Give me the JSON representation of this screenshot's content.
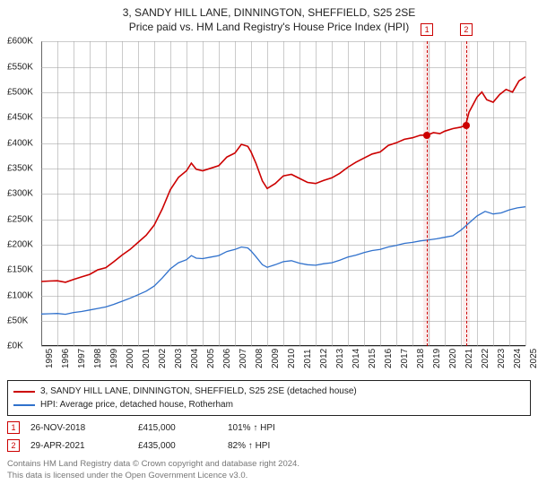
{
  "title": {
    "line1": "3, SANDY HILL LANE, DINNINGTON, SHEFFIELD, S25 2SE",
    "line2": "Price paid vs. HM Land Registry's House Price Index (HPI)"
  },
  "chart": {
    "type": "line",
    "background_color": "#ffffff",
    "grid_color": "#a0a0a0",
    "axis_color": "#222222",
    "x": {
      "min": 1995,
      "max": 2025,
      "tick_step": 1,
      "label_fontsize": 10,
      "rotate_deg": -90
    },
    "y": {
      "min": 0,
      "max": 600000,
      "tick_step": 50000,
      "prefix": "£",
      "suffix": "K",
      "divide": 1000,
      "label_fontsize": 10
    },
    "series": [
      {
        "id": "price_paid",
        "color": "#cc0000",
        "stroke_width": 1.6,
        "legend": "3, SANDY HILL LANE, DINNINGTON, SHEFFIELD, S25 2SE (detached house)",
        "points": [
          [
            1995.0,
            127000
          ],
          [
            1995.5,
            128000
          ],
          [
            1996.0,
            128500
          ],
          [
            1996.5,
            125500
          ],
          [
            1997.0,
            131000
          ],
          [
            1997.5,
            136000
          ],
          [
            1998.0,
            141000
          ],
          [
            1998.5,
            150000
          ],
          [
            1999.0,
            154000
          ],
          [
            1999.5,
            166000
          ],
          [
            2000.0,
            179000
          ],
          [
            2000.5,
            190000
          ],
          [
            2001.0,
            204000
          ],
          [
            2001.5,
            218000
          ],
          [
            2002.0,
            238000
          ],
          [
            2002.5,
            270000
          ],
          [
            2003.0,
            308000
          ],
          [
            2003.5,
            332000
          ],
          [
            2004.0,
            345000
          ],
          [
            2004.3,
            360000
          ],
          [
            2004.6,
            348000
          ],
          [
            2005.0,
            345000
          ],
          [
            2005.5,
            350000
          ],
          [
            2006.0,
            355000
          ],
          [
            2006.5,
            372000
          ],
          [
            2007.0,
            380000
          ],
          [
            2007.4,
            397000
          ],
          [
            2007.8,
            393000
          ],
          [
            2008.0,
            382000
          ],
          [
            2008.3,
            360000
          ],
          [
            2008.7,
            325000
          ],
          [
            2009.0,
            310000
          ],
          [
            2009.5,
            320000
          ],
          [
            2010.0,
            335000
          ],
          [
            2010.5,
            338000
          ],
          [
            2011.0,
            330000
          ],
          [
            2011.5,
            322000
          ],
          [
            2012.0,
            320000
          ],
          [
            2012.5,
            326000
          ],
          [
            2013.0,
            331000
          ],
          [
            2013.5,
            340000
          ],
          [
            2014.0,
            352000
          ],
          [
            2014.5,
            362000
          ],
          [
            2015.0,
            370000
          ],
          [
            2015.5,
            378000
          ],
          [
            2016.0,
            382000
          ],
          [
            2016.5,
            395000
          ],
          [
            2017.0,
            400000
          ],
          [
            2017.5,
            407000
          ],
          [
            2018.0,
            410000
          ],
          [
            2018.5,
            415000
          ],
          [
            2018.9,
            415000
          ],
          [
            2019.3,
            420000
          ],
          [
            2019.7,
            418000
          ],
          [
            2020.0,
            423000
          ],
          [
            2020.5,
            428000
          ],
          [
            2021.0,
            431000
          ],
          [
            2021.3,
            435000
          ],
          [
            2021.5,
            460000
          ],
          [
            2021.8,
            478000
          ],
          [
            2022.0,
            490000
          ],
          [
            2022.3,
            500000
          ],
          [
            2022.6,
            485000
          ],
          [
            2023.0,
            480000
          ],
          [
            2023.4,
            495000
          ],
          [
            2023.8,
            505000
          ],
          [
            2024.2,
            500000
          ],
          [
            2024.6,
            522000
          ],
          [
            2025.0,
            530000
          ]
        ]
      },
      {
        "id": "hpi",
        "color": "#3071cc",
        "stroke_width": 1.3,
        "legend": "HPI: Average price, detached house, Rotherham",
        "points": [
          [
            1995.0,
            63000
          ],
          [
            1995.5,
            63500
          ],
          [
            1996.0,
            64000
          ],
          [
            1996.5,
            62500
          ],
          [
            1997.0,
            66000
          ],
          [
            1997.5,
            68000
          ],
          [
            1998.0,
            71000
          ],
          [
            1998.5,
            74000
          ],
          [
            1999.0,
            77000
          ],
          [
            1999.5,
            82000
          ],
          [
            2000.0,
            88000
          ],
          [
            2000.5,
            94000
          ],
          [
            2001.0,
            101000
          ],
          [
            2001.5,
            108000
          ],
          [
            2002.0,
            118000
          ],
          [
            2002.5,
            134000
          ],
          [
            2003.0,
            152000
          ],
          [
            2003.5,
            164000
          ],
          [
            2004.0,
            170000
          ],
          [
            2004.3,
            178000
          ],
          [
            2004.6,
            173000
          ],
          [
            2005.0,
            172000
          ],
          [
            2005.5,
            175000
          ],
          [
            2006.0,
            178000
          ],
          [
            2006.5,
            186000
          ],
          [
            2007.0,
            190000
          ],
          [
            2007.4,
            195000
          ],
          [
            2007.8,
            193000
          ],
          [
            2008.0,
            187000
          ],
          [
            2008.3,
            176000
          ],
          [
            2008.7,
            160000
          ],
          [
            2009.0,
            155000
          ],
          [
            2009.5,
            160000
          ],
          [
            2010.0,
            166000
          ],
          [
            2010.5,
            168000
          ],
          [
            2011.0,
            163000
          ],
          [
            2011.5,
            160000
          ],
          [
            2012.0,
            159000
          ],
          [
            2012.5,
            162000
          ],
          [
            2013.0,
            164000
          ],
          [
            2013.5,
            169000
          ],
          [
            2014.0,
            175000
          ],
          [
            2014.5,
            179000
          ],
          [
            2015.0,
            184000
          ],
          [
            2015.5,
            188000
          ],
          [
            2016.0,
            190000
          ],
          [
            2016.5,
            195000
          ],
          [
            2017.0,
            198000
          ],
          [
            2017.5,
            202000
          ],
          [
            2018.0,
            204000
          ],
          [
            2018.5,
            207000
          ],
          [
            2019.0,
            209000
          ],
          [
            2019.5,
            211000
          ],
          [
            2020.0,
            214000
          ],
          [
            2020.5,
            217000
          ],
          [
            2021.0,
            228000
          ],
          [
            2021.5,
            242000
          ],
          [
            2022.0,
            256000
          ],
          [
            2022.5,
            265000
          ],
          [
            2023.0,
            260000
          ],
          [
            2023.5,
            262000
          ],
          [
            2024.0,
            268000
          ],
          [
            2024.5,
            272000
          ],
          [
            2025.0,
            274000
          ]
        ]
      }
    ],
    "sale_markers": [
      {
        "idx": "1",
        "color": "#cc0000",
        "date": "26-NOV-2018",
        "x": 2018.9,
        "price_val": 415000,
        "price_txt": "£415,000",
        "hpi_txt": "101% ↑ HPI"
      },
      {
        "idx": "2",
        "color": "#cc0000",
        "date": "29-APR-2021",
        "x": 2021.33,
        "price_val": 435000,
        "price_txt": "£435,000",
        "hpi_txt": "82% ↑ HPI"
      }
    ]
  },
  "footer": {
    "line1": "Contains HM Land Registry data © Crown copyright and database right 2024.",
    "line2": "This data is licensed under the Open Government Licence v3.0."
  }
}
